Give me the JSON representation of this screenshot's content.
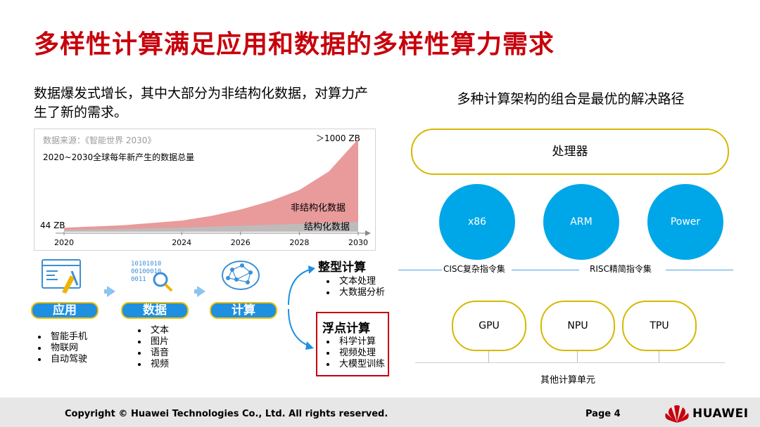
{
  "title": "多样性计算满足应用和数据的多样性算力需求",
  "intro": "数据爆发式增长，其中大部分为非结构化数据，对算力产生了新的需求。",
  "chart_data": {
    "type": "area",
    "source": "数据来源：《智能世界 2030》",
    "subtitle": "2020~2030全球每年新产生的数据总量",
    "x_ticks": [
      "2020",
      "2024",
      "2026",
      "2028",
      "2030"
    ],
    "start_label": "44 ZB",
    "end_label": "＞1000 ZB",
    "series": [
      {
        "name": "非结构化数据",
        "color": "#e5888a",
        "x": [
          2020,
          2022,
          2024,
          2025,
          2026,
          2027,
          2028,
          2029,
          2030
        ],
        "values": [
          44,
          70,
          120,
          170,
          240,
          330,
          450,
          650,
          1000
        ]
      },
      {
        "name": "结构化数据",
        "color": "#bdbdbd",
        "x": [
          2020,
          2022,
          2024,
          2025,
          2026,
          2027,
          2028,
          2029,
          2030
        ],
        "values": [
          20,
          30,
          45,
          55,
          65,
          75,
          85,
          95,
          105
        ]
      }
    ],
    "xlim": [
      2020,
      2030
    ],
    "ylim": [
      0,
      1000
    ]
  },
  "flow": {
    "steps": [
      {
        "label": "应用",
        "items": [
          "智能手机",
          "物联网",
          "自动驾驶"
        ]
      },
      {
        "label": "数据",
        "items": [
          "文本",
          "图片",
          "语音",
          "视频"
        ]
      },
      {
        "label": "计算",
        "items": []
      }
    ],
    "icon_binary_text": "10101010\n00100010\n0011",
    "outcomes": [
      {
        "title": "整型计算",
        "items": [
          "文本处理",
          "大数据分析"
        ]
      },
      {
        "title": "浮点计算",
        "items": [
          "科学计算",
          "视频处理",
          "大模型训练"
        ]
      }
    ]
  },
  "right": {
    "heading": "多种计算架构的组合是最优的解决路径",
    "processor": "处理器",
    "architectures": [
      "x86",
      "ARM",
      "Power"
    ],
    "cisc_label": "CISC复杂指令集",
    "risc_label": "RISC精简指令集",
    "units": [
      "GPU",
      "NPU",
      "TPU"
    ],
    "units_caption": "其他计算单元"
  },
  "footer": {
    "copyright": "Copyright © Huawei Technologies Co., Ltd. All rights reserved.",
    "page": "Page 4",
    "brand": "HUAWEI"
  },
  "colors": {
    "accent_red": "#c7000b",
    "blue": "#00a7e8",
    "gold": "#d6b800"
  }
}
